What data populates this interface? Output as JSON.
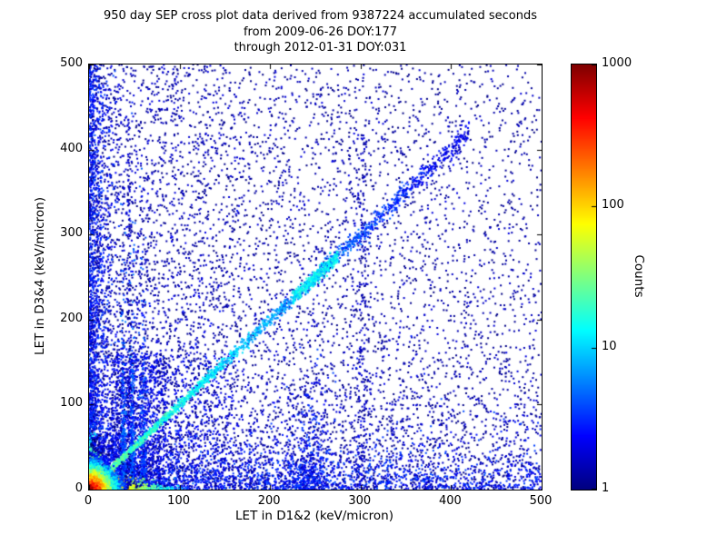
{
  "title": {
    "line1": "950 day SEP cross plot data derived from 9387224 accumulated seconds",
    "line2": "from 2009-06-26 DOY:177",
    "line3": "through 2012-01-31 DOY:031"
  },
  "chart_data": {
    "type": "scatter",
    "title": "950 day SEP cross plot data derived from 9387224 accumulated seconds from 2009-06-26 DOY:177 through 2012-01-31 DOY:031",
    "xlabel": "LET in D1&2 (keV/micron)",
    "ylabel": "LET in D3&4 (keV/micron)",
    "xlim": [
      0,
      500
    ],
    "ylim": [
      0,
      500
    ],
    "xticks": [
      0,
      100,
      200,
      300,
      400,
      500
    ],
    "yticks": [
      0,
      100,
      200,
      300,
      400,
      500
    ],
    "grid": false,
    "colorbar": {
      "label": "Counts",
      "scale": "log",
      "min": 1,
      "max": 1000,
      "ticks": [
        1,
        10,
        100,
        1000
      ],
      "colormap": "jet",
      "color_low": "#00007f",
      "color_high": "#7f0000"
    },
    "seed": 7,
    "features": [
      {
        "kind": "uniform",
        "n": 3200,
        "x": [
          0,
          500
        ],
        "y": [
          0,
          500
        ],
        "count": [
          1,
          1.5
        ]
      },
      {
        "kind": "band_x",
        "n": 2200,
        "scale": 130,
        "y": [
          0,
          500
        ],
        "count": [
          1,
          2
        ]
      },
      {
        "kind": "band_y",
        "n": 1800,
        "scale": 140,
        "x": [
          0,
          500
        ],
        "count": [
          1,
          2
        ]
      },
      {
        "kind": "patch",
        "n": 700,
        "x": [
          0,
          160
        ],
        "y": [
          0,
          160
        ],
        "count": [
          1,
          3
        ]
      },
      {
        "kind": "band_y",
        "n": 2400,
        "scale": 20,
        "x_pow": 1.6,
        "x_max": 500,
        "count": [
          1,
          4
        ]
      },
      {
        "kind": "band_x",
        "n": 1900,
        "scale": 9,
        "y_pow": 1.4,
        "y_max": 500,
        "count": [
          1,
          4
        ]
      },
      {
        "kind": "ray",
        "n": 160,
        "slope": 0.5,
        "r_scale": 70,
        "spread": 2.5,
        "count": [
          1,
          3
        ]
      },
      {
        "kind": "ray",
        "n": 140,
        "slope": 2.0,
        "r_scale": 70,
        "spread": 2.5,
        "count": [
          1,
          3
        ]
      },
      {
        "kind": "ray",
        "n": 120,
        "slope": 3.2,
        "r_scale": 60,
        "spread": 2.5,
        "count": [
          1,
          3
        ]
      },
      {
        "kind": "ray",
        "n": 120,
        "slope": 0.3,
        "r_scale": 60,
        "spread": 2.0,
        "count": [
          1,
          3
        ]
      },
      {
        "kind": "ray",
        "n": 110,
        "slope": 1.45,
        "r_scale": 90,
        "spread": 2.0,
        "count": [
          1,
          3
        ]
      },
      {
        "kind": "ray",
        "n": 110,
        "slope": 0.7,
        "r_scale": 90,
        "spread": 2.0,
        "count": [
          1,
          3
        ]
      },
      {
        "kind": "patch",
        "n": 700,
        "x": [
          25,
          85
        ],
        "y": [
          0,
          160
        ],
        "count": [
          1,
          3
        ]
      },
      {
        "kind": "vline",
        "n": 320,
        "cx": 38,
        "sx": 1.5,
        "y_scale": 65,
        "count": [
          2,
          6
        ]
      },
      {
        "kind": "vline",
        "n": 300,
        "cx": 48,
        "sx": 1.5,
        "y_scale": 75,
        "count": [
          2,
          6
        ]
      },
      {
        "kind": "vline",
        "n": 260,
        "cx": 60,
        "sx": 1.8,
        "y_scale": 70,
        "count": [
          2,
          5
        ]
      },
      {
        "kind": "vline",
        "n": 120,
        "cx": 44,
        "sx": 1.2,
        "uniform": true,
        "y_max": 430,
        "count": [
          1,
          2
        ]
      },
      {
        "kind": "vline",
        "n": 200,
        "cx": 302,
        "sx": 4,
        "uniform": true,
        "y_max": 420,
        "count": [
          1,
          2
        ]
      },
      {
        "kind": "vline",
        "n": 380,
        "cx": 243,
        "sx": 12,
        "y_scale": 40,
        "count": [
          1,
          4
        ]
      },
      {
        "kind": "diag",
        "n": 2300,
        "xmax": 420,
        "pow": 2.0,
        "spread0": 1.5,
        "spread_k": 0.012,
        "c0": 28,
        "c_scale": 140
      },
      {
        "kind": "diag",
        "n": 350,
        "xmin": 225,
        "xmax": 275,
        "pow": 1.0,
        "spread0": 4,
        "spread_k": 0,
        "c0": 12,
        "c_scale": 9999
      },
      {
        "kind": "streak_h",
        "n": 1100,
        "x_scale": 22,
        "y_scale": 3,
        "c0": 350,
        "c_scale": 26
      },
      {
        "kind": "streak_v",
        "n": 600,
        "y_scale": 16,
        "x_scale": 3,
        "c0": 160,
        "c_scale": 22
      },
      {
        "kind": "blob",
        "n": 4200,
        "x_scale": 9,
        "y_scale": 9,
        "c0": 1000,
        "c_scale": 6.5
      }
    ]
  }
}
